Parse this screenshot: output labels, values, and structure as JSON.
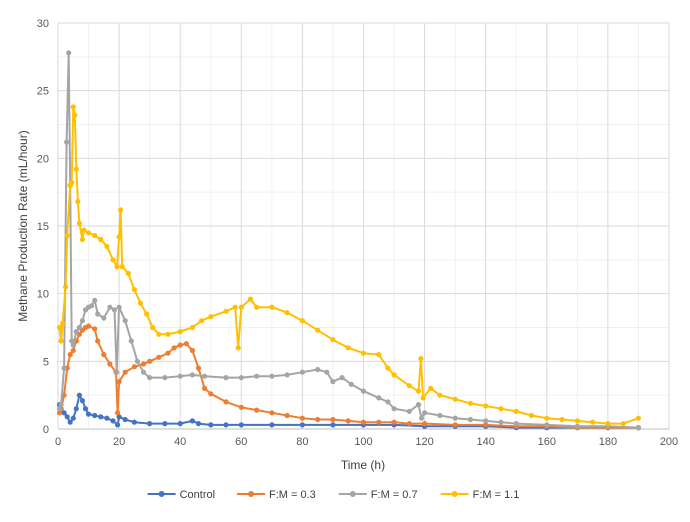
{
  "chart_data": {
    "type": "line",
    "title": "",
    "xlabel": "Time (h)",
    "ylabel": "Methane Production Rate (mL/hour)",
    "xlim": [
      0,
      200
    ],
    "ylim": [
      0,
      30
    ],
    "xticks": [
      0,
      20,
      40,
      60,
      80,
      100,
      120,
      140,
      160,
      180,
      200
    ],
    "yticks": [
      0,
      5,
      10,
      15,
      20,
      25,
      30
    ],
    "xtick_labels": [
      "0",
      "20",
      "40",
      "60",
      "80",
      "100",
      "120",
      "140",
      "160",
      "180",
      "200"
    ],
    "ytick_labels": [
      "0",
      "5",
      "10",
      "15",
      "20",
      "25",
      "30"
    ],
    "grid": true,
    "legend_position": "bottom",
    "series": [
      {
        "name": "Control",
        "color": "#4472C4",
        "points": [
          [
            0.5,
            1.8
          ],
          [
            1,
            1.5
          ],
          [
            2,
            1.2
          ],
          [
            3,
            0.9
          ],
          [
            4,
            0.5
          ],
          [
            5,
            0.8
          ],
          [
            6,
            1.5
          ],
          [
            7,
            2.5
          ],
          [
            8,
            2.1
          ],
          [
            9,
            1.5
          ],
          [
            10,
            1.1
          ],
          [
            12,
            1.0
          ],
          [
            14,
            0.9
          ],
          [
            16,
            0.8
          ],
          [
            18,
            0.6
          ],
          [
            19.5,
            0.3
          ],
          [
            20,
            0.9
          ],
          [
            22,
            0.7
          ],
          [
            25,
            0.5
          ],
          [
            30,
            0.4
          ],
          [
            35,
            0.4
          ],
          [
            40,
            0.4
          ],
          [
            44,
            0.6
          ],
          [
            46,
            0.4
          ],
          [
            50,
            0.3
          ],
          [
            55,
            0.3
          ],
          [
            60,
            0.3
          ],
          [
            70,
            0.3
          ],
          [
            80,
            0.3
          ],
          [
            90,
            0.3
          ],
          [
            100,
            0.3
          ],
          [
            110,
            0.3
          ],
          [
            120,
            0.2
          ],
          [
            130,
            0.2
          ],
          [
            140,
            0.2
          ],
          [
            150,
            0.1
          ],
          [
            160,
            0.1
          ],
          [
            170,
            0.1
          ],
          [
            180,
            0.1
          ],
          [
            190,
            0.1
          ]
        ]
      },
      {
        "name": "F:M = 0.3",
        "color": "#ED7D31",
        "points": [
          [
            0.5,
            1.2
          ],
          [
            1,
            1.5
          ],
          [
            2,
            2.5
          ],
          [
            3,
            4.5
          ],
          [
            4,
            5.5
          ],
          [
            5,
            5.8
          ],
          [
            6,
            6.5
          ],
          [
            7,
            7.0
          ],
          [
            8,
            7.3
          ],
          [
            9,
            7.5
          ],
          [
            10,
            7.6
          ],
          [
            12,
            7.4
          ],
          [
            13,
            6.5
          ],
          [
            15,
            5.5
          ],
          [
            17,
            4.8
          ],
          [
            19,
            4.2
          ],
          [
            19.5,
            1.2
          ],
          [
            20,
            3.5
          ],
          [
            22,
            4.2
          ],
          [
            25,
            4.6
          ],
          [
            28,
            4.8
          ],
          [
            30,
            5.0
          ],
          [
            33,
            5.3
          ],
          [
            36,
            5.6
          ],
          [
            38,
            6.0
          ],
          [
            40,
            6.2
          ],
          [
            42,
            6.3
          ],
          [
            44,
            5.8
          ],
          [
            46,
            4.5
          ],
          [
            48,
            3.0
          ],
          [
            50,
            2.6
          ],
          [
            55,
            2.0
          ],
          [
            60,
            1.6
          ],
          [
            65,
            1.4
          ],
          [
            70,
            1.2
          ],
          [
            75,
            1.0
          ],
          [
            80,
            0.8
          ],
          [
            85,
            0.7
          ],
          [
            90,
            0.7
          ],
          [
            95,
            0.6
          ],
          [
            100,
            0.5
          ],
          [
            105,
            0.5
          ],
          [
            110,
            0.5
          ],
          [
            115,
            0.4
          ],
          [
            120,
            0.4
          ],
          [
            130,
            0.3
          ],
          [
            140,
            0.3
          ],
          [
            150,
            0.2
          ],
          [
            160,
            0.2
          ],
          [
            170,
            0.1
          ],
          [
            180,
            0.1
          ],
          [
            190,
            0.1
          ]
        ]
      },
      {
        "name": "F:M = 0.7",
        "color": "#A5A5A5",
        "points": [
          [
            0.5,
            1.5
          ],
          [
            1,
            1.8
          ],
          [
            2,
            4.5
          ],
          [
            2.8,
            21.2
          ],
          [
            3.5,
            27.8
          ],
          [
            4,
            18.0
          ],
          [
            4.5,
            6.5
          ],
          [
            5,
            6.2
          ],
          [
            6,
            7.2
          ],
          [
            7,
            7.5
          ],
          [
            8,
            8.0
          ],
          [
            9,
            8.8
          ],
          [
            10,
            9.0
          ],
          [
            11,
            9.1
          ],
          [
            12,
            9.5
          ],
          [
            13,
            8.5
          ],
          [
            15,
            8.2
          ],
          [
            17,
            9.0
          ],
          [
            18.5,
            8.8
          ],
          [
            19.2,
            4.2
          ],
          [
            20,
            9.0
          ],
          [
            22,
            8.0
          ],
          [
            24,
            6.5
          ],
          [
            26,
            5.0
          ],
          [
            28,
            4.2
          ],
          [
            30,
            3.8
          ],
          [
            35,
            3.8
          ],
          [
            40,
            3.9
          ],
          [
            44,
            4.0
          ],
          [
            48,
            3.9
          ],
          [
            55,
            3.8
          ],
          [
            60,
            3.8
          ],
          [
            65,
            3.9
          ],
          [
            70,
            3.9
          ],
          [
            75,
            4.0
          ],
          [
            80,
            4.2
          ],
          [
            85,
            4.4
          ],
          [
            88,
            4.2
          ],
          [
            90,
            3.5
          ],
          [
            93,
            3.8
          ],
          [
            96,
            3.3
          ],
          [
            100,
            2.8
          ],
          [
            105,
            2.3
          ],
          [
            108,
            2.0
          ],
          [
            110,
            1.5
          ],
          [
            115,
            1.3
          ],
          [
            118,
            1.8
          ],
          [
            119,
            0.8
          ],
          [
            120,
            1.2
          ],
          [
            125,
            1.0
          ],
          [
            130,
            0.8
          ],
          [
            135,
            0.7
          ],
          [
            140,
            0.6
          ],
          [
            145,
            0.5
          ],
          [
            150,
            0.4
          ],
          [
            160,
            0.3
          ],
          [
            170,
            0.2
          ],
          [
            180,
            0.2
          ],
          [
            190,
            0.1
          ]
        ]
      },
      {
        "name": "F:M = 1.1",
        "color": "#FFC000",
        "points": [
          [
            0.5,
            7.5
          ],
          [
            1,
            6.5
          ],
          [
            1.5,
            7.8
          ],
          [
            2.5,
            10.5
          ],
          [
            3,
            14.3
          ],
          [
            4,
            18.0
          ],
          [
            4.5,
            18.2
          ],
          [
            5,
            23.8
          ],
          [
            5.5,
            23.2
          ],
          [
            6,
            19.2
          ],
          [
            6.5,
            16.8
          ],
          [
            7,
            15.2
          ],
          [
            8,
            14.0
          ],
          [
            8.5,
            14.7
          ],
          [
            10,
            14.5
          ],
          [
            12,
            14.3
          ],
          [
            14,
            14.0
          ],
          [
            16,
            13.5
          ],
          [
            18,
            12.5
          ],
          [
            19.3,
            12.0
          ],
          [
            20,
            14.2
          ],
          [
            20.5,
            16.2
          ],
          [
            21,
            12.0
          ],
          [
            23,
            11.5
          ],
          [
            25,
            10.3
          ],
          [
            27,
            9.3
          ],
          [
            29,
            8.5
          ],
          [
            31,
            7.5
          ],
          [
            33,
            7.0
          ],
          [
            36,
            7.0
          ],
          [
            40,
            7.2
          ],
          [
            44,
            7.5
          ],
          [
            47,
            8.0
          ],
          [
            50,
            8.3
          ],
          [
            55,
            8.7
          ],
          [
            58,
            9.0
          ],
          [
            59,
            6.0
          ],
          [
            60,
            9.0
          ],
          [
            63,
            9.6
          ],
          [
            65,
            9.0
          ],
          [
            70,
            9.0
          ],
          [
            75,
            8.6
          ],
          [
            80,
            8.0
          ],
          [
            85,
            7.3
          ],
          [
            90,
            6.6
          ],
          [
            95,
            6.0
          ],
          [
            100,
            5.6
          ],
          [
            105,
            5.5
          ],
          [
            108,
            4.5
          ],
          [
            110,
            4.0
          ],
          [
            115,
            3.2
          ],
          [
            118,
            2.8
          ],
          [
            118.8,
            5.2
          ],
          [
            119.5,
            2.3
          ],
          [
            122,
            3.0
          ],
          [
            125,
            2.5
          ],
          [
            130,
            2.2
          ],
          [
            135,
            1.9
          ],
          [
            140,
            1.7
          ],
          [
            145,
            1.5
          ],
          [
            150,
            1.3
          ],
          [
            155,
            1.0
          ],
          [
            160,
            0.8
          ],
          [
            165,
            0.7
          ],
          [
            170,
            0.6
          ],
          [
            175,
            0.5
          ],
          [
            180,
            0.4
          ],
          [
            185,
            0.4
          ],
          [
            190,
            0.8
          ]
        ]
      }
    ]
  }
}
